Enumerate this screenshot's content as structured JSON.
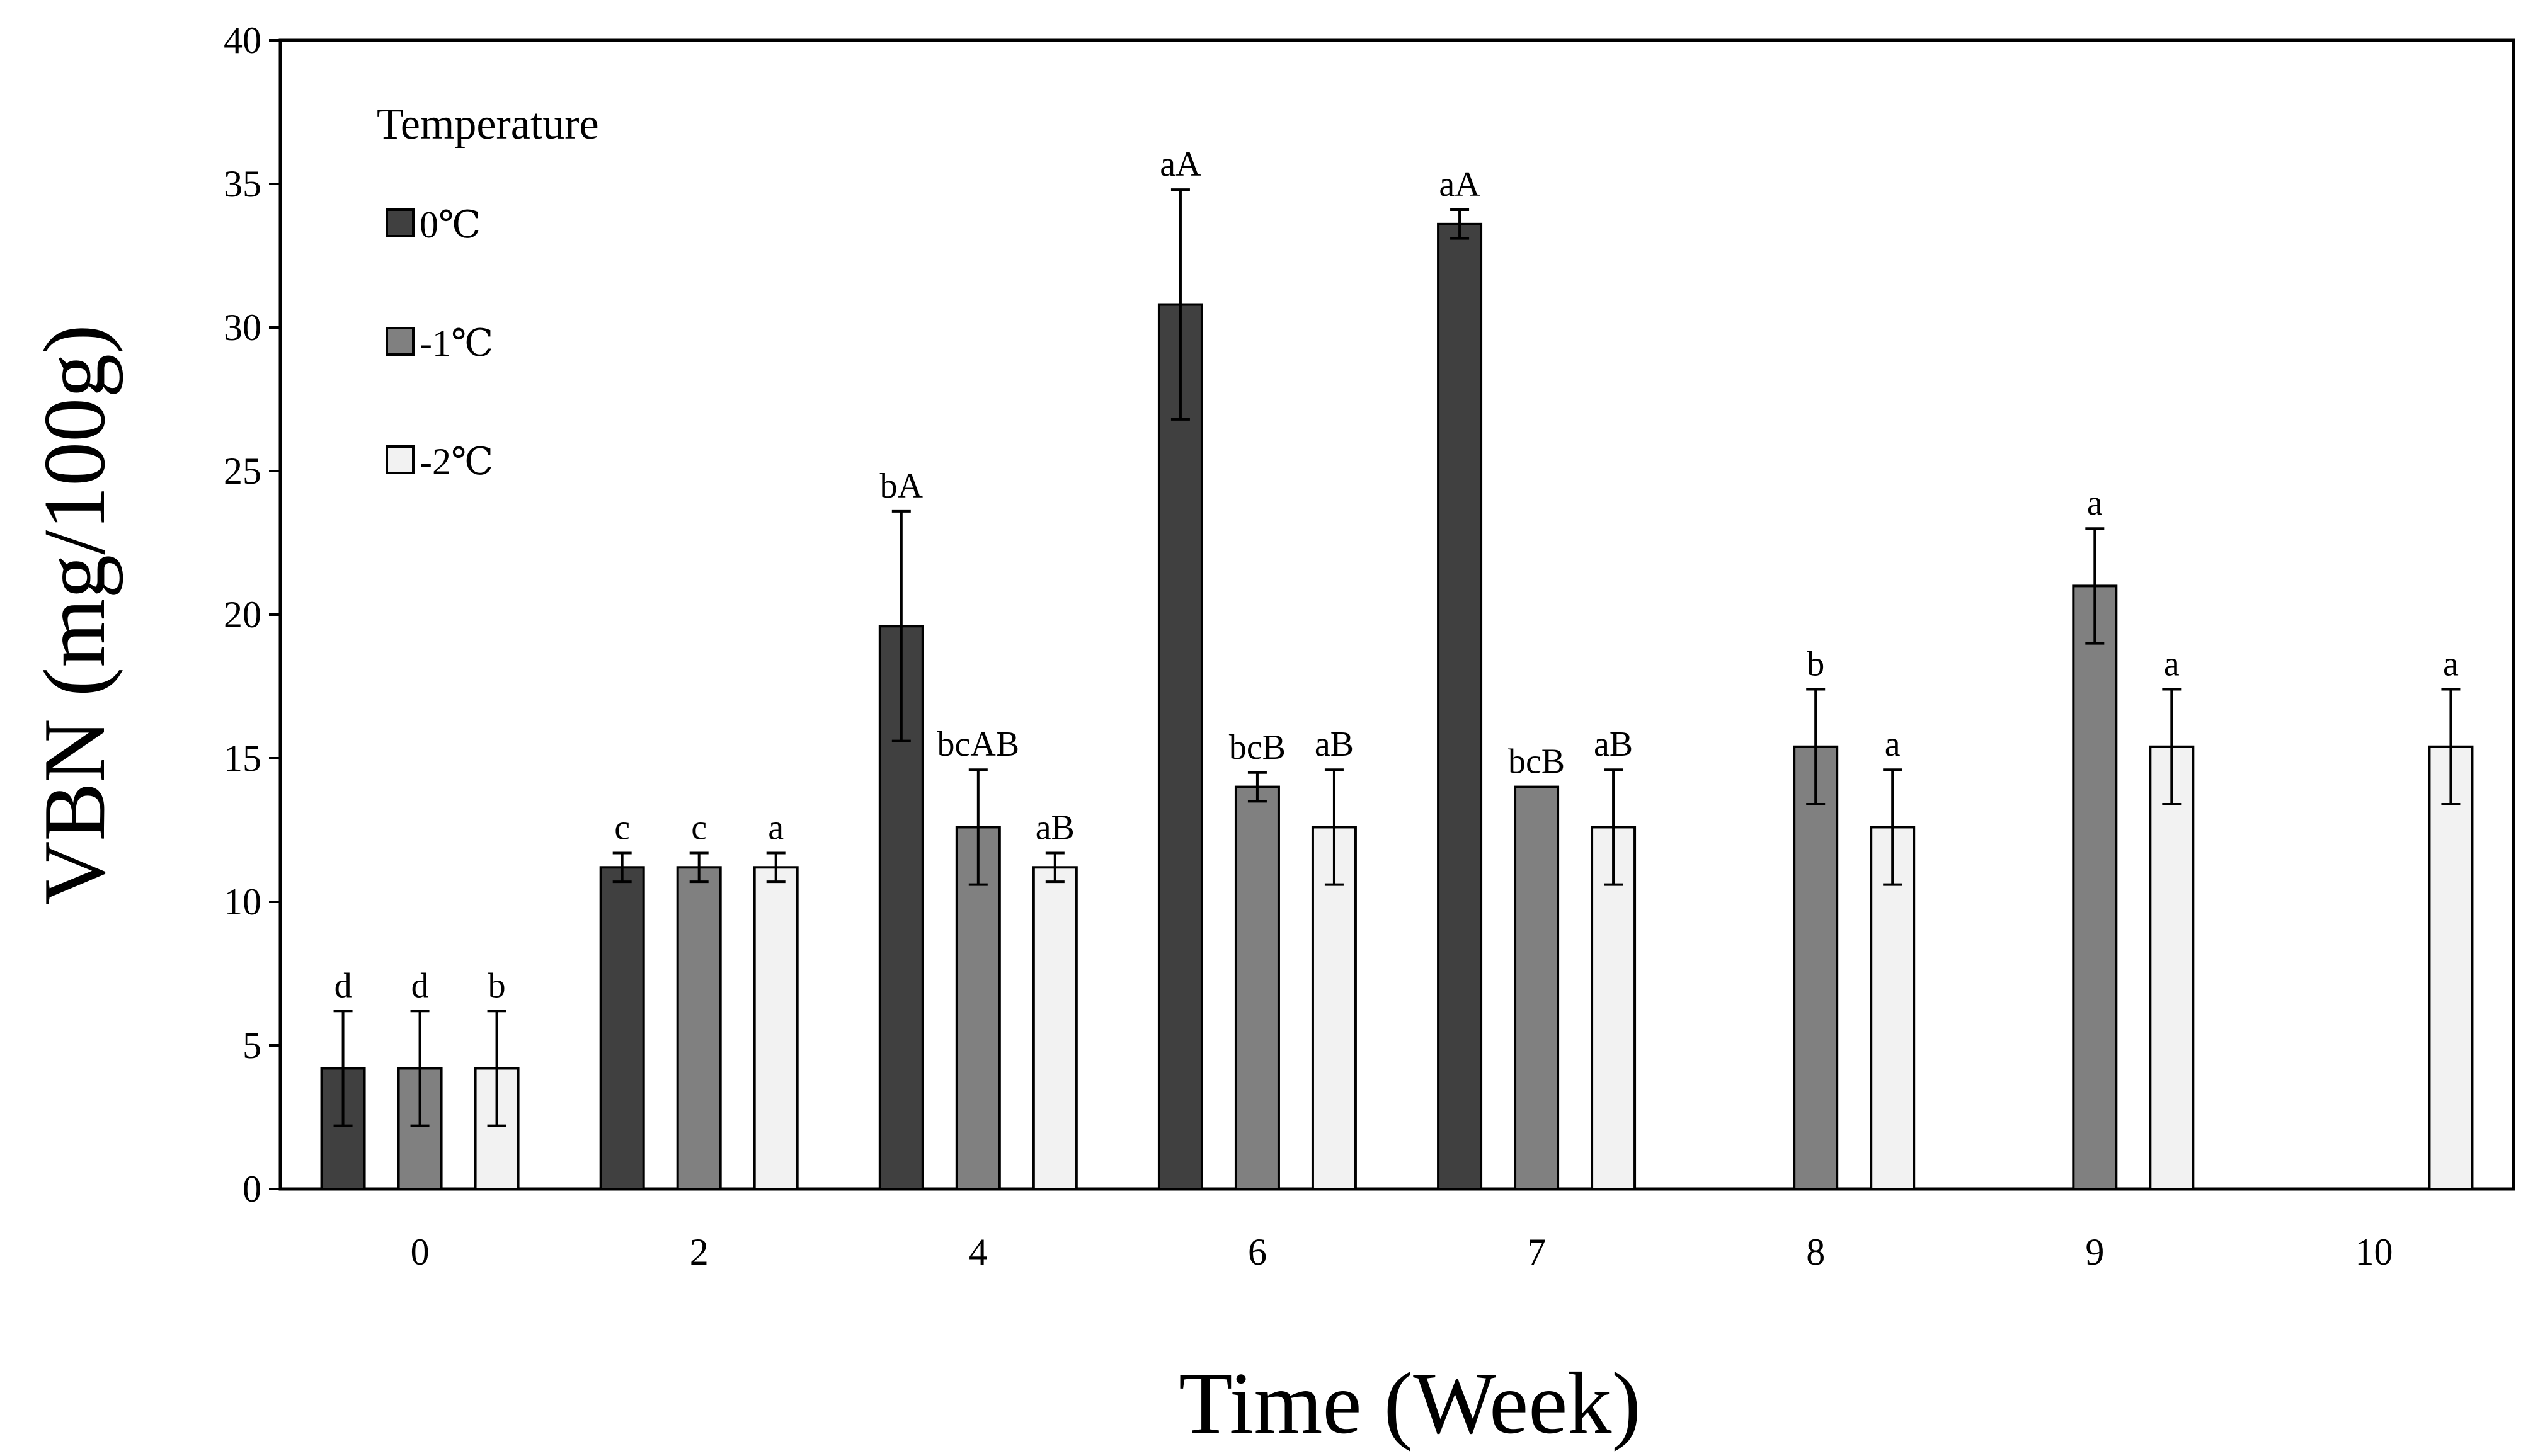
{
  "chart_data": {
    "type": "bar",
    "xlabel": "Time (Week)",
    "ylabel": "VBN (mg/100g)",
    "ylim": [
      0,
      40
    ],
    "yticks": [
      0,
      5,
      10,
      15,
      20,
      25,
      30,
      35,
      40
    ],
    "categories": [
      "0",
      "2",
      "4",
      "6",
      "7",
      "8",
      "9",
      "10"
    ],
    "legend": {
      "title": "Temperature",
      "position": "top-left"
    },
    "series": [
      {
        "name": "0℃",
        "color": "#404040",
        "values": [
          4.2,
          11.2,
          19.6,
          30.8,
          33.6,
          null,
          null,
          null
        ],
        "errors": [
          2.0,
          0.5,
          4.0,
          4.0,
          0.5,
          null,
          null,
          null
        ],
        "labels": [
          "d",
          "c",
          "bA",
          "aA",
          "aA",
          null,
          null,
          null
        ]
      },
      {
        "name": "-1℃",
        "color": "#808080",
        "values": [
          4.2,
          11.2,
          12.6,
          14.0,
          14.0,
          15.4,
          21.0,
          null
        ],
        "errors": [
          2.0,
          0.5,
          2.0,
          0.5,
          0.0,
          2.0,
          2.0,
          null
        ],
        "labels": [
          "d",
          "c",
          "bcAB",
          "bcB",
          "bcB",
          "b",
          "a",
          null
        ]
      },
      {
        "name": "-2℃",
        "color": "#f2f2f2",
        "values": [
          4.2,
          11.2,
          11.2,
          12.6,
          12.6,
          12.6,
          15.4,
          15.4
        ],
        "errors": [
          2.0,
          0.5,
          0.5,
          2.0,
          2.0,
          2.0,
          2.0,
          2.0
        ],
        "labels": [
          "b",
          "a",
          "aB",
          "aB",
          "aB",
          "a",
          "a",
          "a"
        ]
      }
    ]
  }
}
